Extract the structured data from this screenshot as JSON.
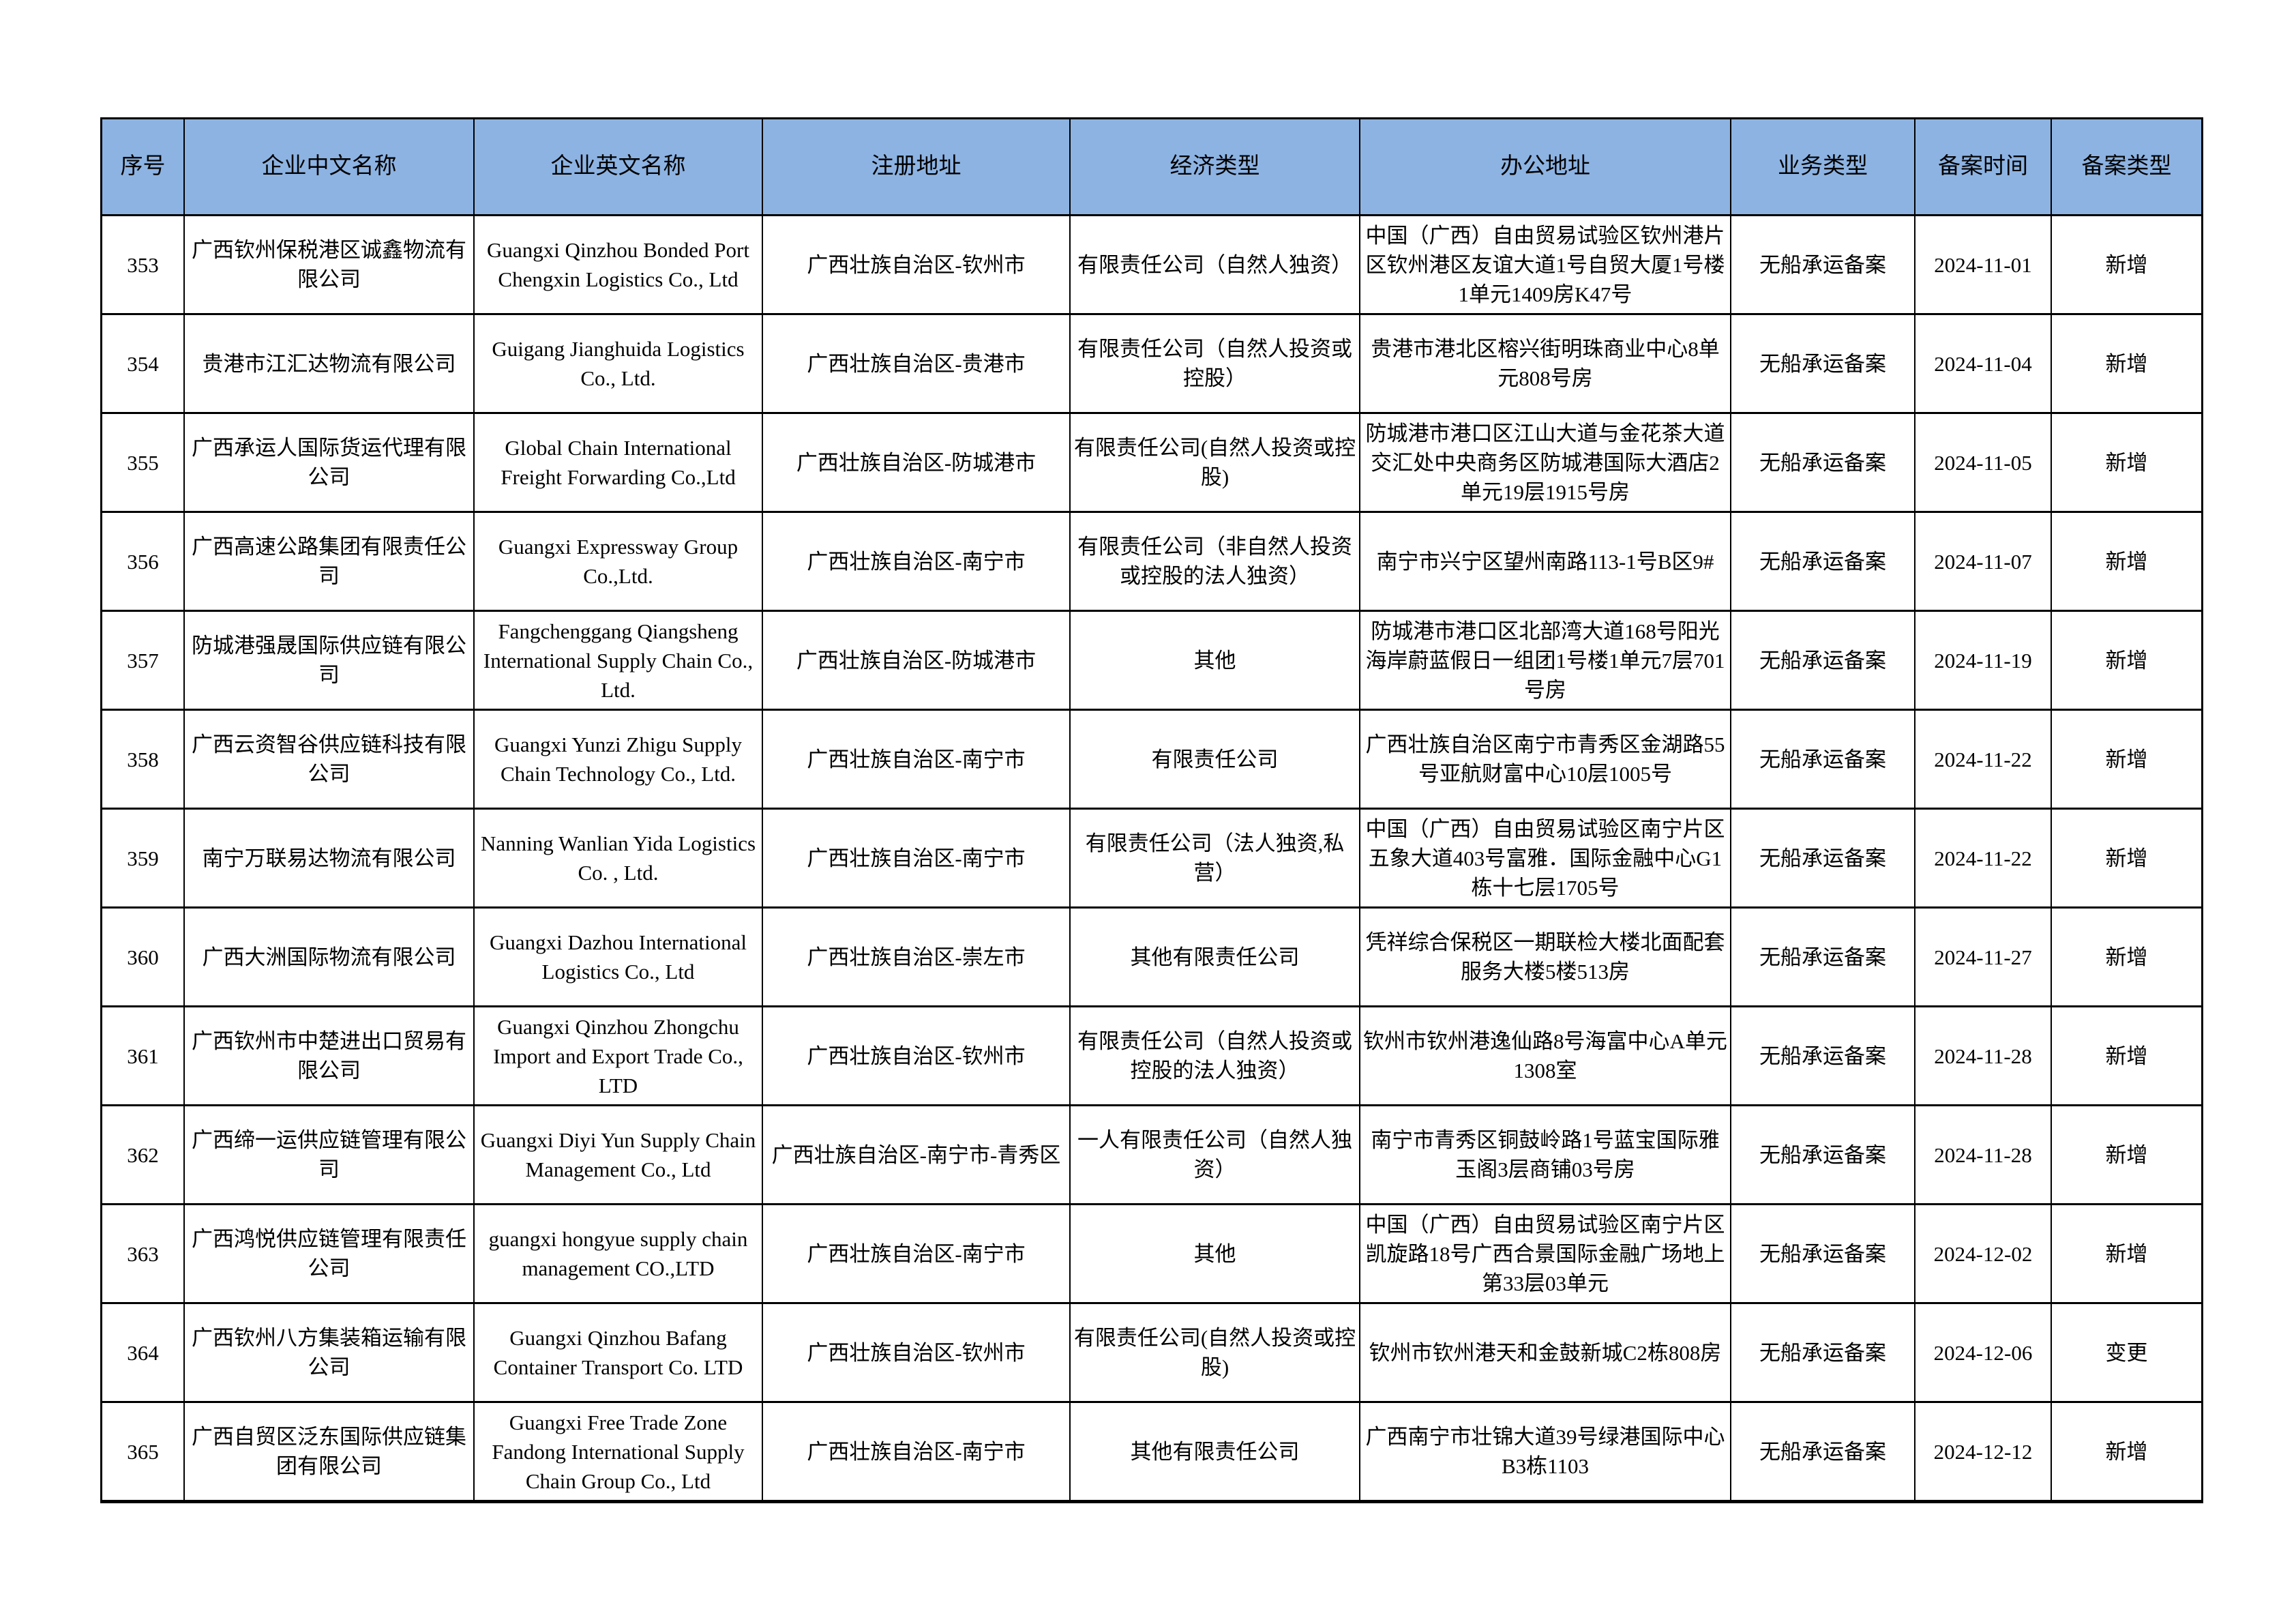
{
  "table": {
    "headers": [
      "序号",
      "企业中文名称",
      "企业英文名称",
      "注册地址",
      "经济类型",
      "办公地址",
      "业务类型",
      "备案时间",
      "备案类型"
    ],
    "header_color": "#8db3e2",
    "rows": [
      [
        "353",
        "广西钦州保税港区诚鑫物流有限公司",
        "Guangxi Qinzhou Bonded Port Chengxin Logistics Co., Ltd",
        "广西壮族自治区-钦州市",
        "有限责任公司（自然人独资）",
        "中国（广西）自由贸易试验区钦州港片区钦州港区友谊大道1号自贸大厦1号楼1单元1409房K47号",
        "无船承运备案",
        "2024-11-01",
        "新增"
      ],
      [
        "354",
        "贵港市江汇达物流有限公司",
        "Guigang Jianghuida Logistics Co., Ltd.",
        "广西壮族自治区-贵港市",
        "有限责任公司（自然人投资或控股）",
        "贵港市港北区榕兴街明珠商业中心8单元808号房",
        "无船承运备案",
        "2024-11-04",
        "新增"
      ],
      [
        "355",
        "广西承运人国际货运代理有限公司",
        "Global Chain International Freight Forwarding Co.,Ltd",
        "广西壮族自治区-防城港市",
        "有限责任公司(自然人投资或控股)",
        "防城港市港口区江山大道与金花茶大道交汇处中央商务区防城港国际大酒店2单元19层1915号房",
        "无船承运备案",
        "2024-11-05",
        "新增"
      ],
      [
        "356",
        "广西高速公路集团有限责任公司",
        "Guangxi Expressway Group Co.,Ltd.",
        "广西壮族自治区-南宁市",
        "有限责任公司（非自然人投资或控股的法人独资）",
        "南宁市兴宁区望州南路113-1号B区9#",
        "无船承运备案",
        "2024-11-07",
        "新增"
      ],
      [
        "357",
        "防城港强晟国际供应链有限公司",
        "Fangchenggang Qiangsheng International Supply Chain Co., Ltd.",
        "广西壮族自治区-防城港市",
        "其他",
        "防城港市港口区北部湾大道168号阳光海岸蔚蓝假日一组团1号楼1单元7层701号房",
        "无船承运备案",
        "2024-11-19",
        "新增"
      ],
      [
        "358",
        "广西云资智谷供应链科技有限公司",
        "Guangxi Yunzi Zhigu Supply Chain Technology Co., Ltd.",
        "广西壮族自治区-南宁市",
        "有限责任公司",
        "广西壮族自治区南宁市青秀区金湖路55号亚航财富中心10层1005号",
        "无船承运备案",
        "2024-11-22",
        "新增"
      ],
      [
        "359",
        "南宁万联易达物流有限公司",
        "Nanning Wanlian Yida Logistics Co. , Ltd.",
        "广西壮族自治区-南宁市",
        "有限责任公司（法人独资,私营）",
        "中国（广西）自由贸易试验区南宁片区五象大道403号富雅．国际金融中心G1栋十七层1705号",
        "无船承运备案",
        "2024-11-22",
        "新增"
      ],
      [
        "360",
        "广西大洲国际物流有限公司",
        "Guangxi Dazhou International Logistics Co., Ltd",
        "广西壮族自治区-崇左市",
        "其他有限责任公司",
        "凭祥综合保税区一期联检大楼北面配套服务大楼5楼513房",
        "无船承运备案",
        "2024-11-27",
        "新增"
      ],
      [
        "361",
        "广西钦州市中楚进出口贸易有限公司",
        "Guangxi Qinzhou Zhongchu Import and Export Trade Co., LTD",
        "广西壮族自治区-钦州市",
        "有限责任公司（自然人投资或控股的法人独资）",
        "钦州市钦州港逸仙路8号海富中心A单元1308室",
        "无船承运备案",
        "2024-11-28",
        "新增"
      ],
      [
        "362",
        "广西缔一运供应链管理有限公司",
        "Guangxi Diyi Yun Supply Chain Management Co., Ltd",
        "广西壮族自治区-南宁市-青秀区",
        "一人有限责任公司（自然人独资）",
        "南宁市青秀区铜鼓岭路1号蓝宝国际雅玉阁3层商铺03号房",
        "无船承运备案",
        "2024-11-28",
        "新增"
      ],
      [
        "363",
        "广西鸿悦供应链管理有限责任公司",
        "guangxi hongyue supply chain management CO.,LTD",
        "广西壮族自治区-南宁市",
        "其他",
        "中国（广西）自由贸易试验区南宁片区凯旋路18号广西合景国际金融广场地上第33层03单元",
        "无船承运备案",
        "2024-12-02",
        "新增"
      ],
      [
        "364",
        "广西钦州八方集装箱运输有限公司",
        "Guangxi Qinzhou Bafang Container Transport Co. LTD",
        "广西壮族自治区-钦州市",
        "有限责任公司(自然人投资或控股)",
        "钦州市钦州港天和金鼓新城C2栋808房",
        "无船承运备案",
        "2024-12-06",
        "变更"
      ],
      [
        "365",
        "广西自贸区泛东国际供应链集团有限公司",
        "Guangxi  Free Trade Zone Fandong International Supply Chain Group Co., Ltd",
        "广西壮族自治区-南宁市",
        "其他有限责任公司",
        "广西南宁市壮锦大道39号绿港国际中心B3栋1103",
        "无船承运备案",
        "2024-12-12",
        "新增"
      ]
    ]
  }
}
